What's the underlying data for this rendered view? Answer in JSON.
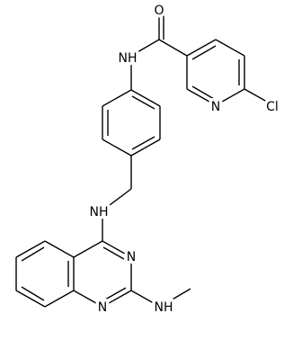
{
  "molecule": {
    "labels": [
      "O",
      "NH",
      "N",
      "Cl",
      "NH",
      "N",
      "N",
      "NH"
    ]
  }
}
